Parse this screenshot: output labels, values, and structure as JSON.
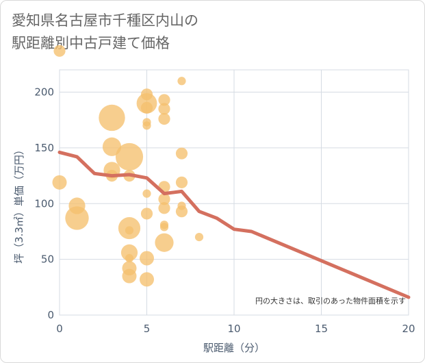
{
  "chart_data": {
    "type": "scatter",
    "title_lines": [
      "愛知県名古屋市千種区内山の",
      "駅距離別中古戸建て価格"
    ],
    "xlabel": "駅距離（分）",
    "ylabel": "坪（3.3㎡）単価（万円）",
    "xlim": [
      0,
      20
    ],
    "ylim": [
      0,
      220
    ],
    "x_ticks": [
      0,
      5,
      10,
      15,
      20
    ],
    "y_ticks": [
      0,
      50,
      100,
      150,
      200
    ],
    "grid": true,
    "note": "円の大きさは、取引のあった物件面積を示す",
    "colors": {
      "bubble": "#f5c06e",
      "trend": "#d4705f",
      "grid": "#d5dbe3"
    },
    "points": [
      {
        "x": 0,
        "y": 237,
        "size": 2
      },
      {
        "x": 0,
        "y": 119,
        "size": 3
      },
      {
        "x": 1,
        "y": 98,
        "size": 4
      },
      {
        "x": 1,
        "y": 87,
        "size": 8
      },
      {
        "x": 3,
        "y": 177,
        "size": 10
      },
      {
        "x": 3,
        "y": 151,
        "size": 5
      },
      {
        "x": 3,
        "y": 130,
        "size": 4
      },
      {
        "x": 3,
        "y": 125,
        "size": 2
      },
      {
        "x": 4,
        "y": 142,
        "size": 11
      },
      {
        "x": 4,
        "y": 125,
        "size": 2
      },
      {
        "x": 4,
        "y": 78,
        "size": 7
      },
      {
        "x": 4,
        "y": 76,
        "size": 1
      },
      {
        "x": 4,
        "y": 56,
        "size": 4
      },
      {
        "x": 4,
        "y": 51,
        "size": 1
      },
      {
        "x": 4,
        "y": 42,
        "size": 3
      },
      {
        "x": 4,
        "y": 35,
        "size": 3
      },
      {
        "x": 5,
        "y": 198,
        "size": 2
      },
      {
        "x": 5,
        "y": 190,
        "size": 6
      },
      {
        "x": 5,
        "y": 186,
        "size": 2
      },
      {
        "x": 5,
        "y": 173,
        "size": 1
      },
      {
        "x": 5,
        "y": 170,
        "size": 1
      },
      {
        "x": 5,
        "y": 109,
        "size": 1
      },
      {
        "x": 5,
        "y": 91,
        "size": 2
      },
      {
        "x": 5,
        "y": 51,
        "size": 3
      },
      {
        "x": 5,
        "y": 32,
        "size": 3
      },
      {
        "x": 6,
        "y": 193,
        "size": 2
      },
      {
        "x": 6,
        "y": 185,
        "size": 2
      },
      {
        "x": 6,
        "y": 176,
        "size": 2
      },
      {
        "x": 6,
        "y": 115,
        "size": 2
      },
      {
        "x": 6,
        "y": 104,
        "size": 2
      },
      {
        "x": 6,
        "y": 96,
        "size": 2
      },
      {
        "x": 6,
        "y": 81,
        "size": 1
      },
      {
        "x": 6,
        "y": 79,
        "size": 1
      },
      {
        "x": 6,
        "y": 65,
        "size": 5
      },
      {
        "x": 7,
        "y": 210,
        "size": 1
      },
      {
        "x": 7,
        "y": 145,
        "size": 2
      },
      {
        "x": 7,
        "y": 119,
        "size": 2
      },
      {
        "x": 7,
        "y": 98,
        "size": 1
      },
      {
        "x": 7,
        "y": 93,
        "size": 2
      },
      {
        "x": 8,
        "y": 70,
        "size": 1
      }
    ],
    "trend": {
      "x": [
        0,
        1,
        2,
        3,
        4,
        5,
        6,
        7,
        8,
        9,
        10,
        11,
        20
      ],
      "y": [
        146,
        142,
        127,
        125,
        126,
        123,
        109,
        111,
        93,
        87,
        77,
        75,
        16
      ]
    }
  }
}
